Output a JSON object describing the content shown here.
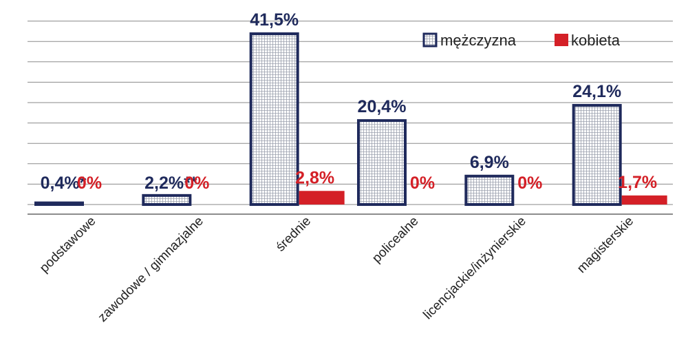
{
  "chart_data": {
    "type": "bar",
    "categories": [
      "podstawowe",
      "zawodowe / gimnazjalne",
      "średnie",
      "policealne",
      "licencjackie/inżynierskie",
      "magisterskie"
    ],
    "series": [
      {
        "name": "mężczyzna",
        "values": [
          0.4,
          2.2,
          41.5,
          20.4,
          6.9,
          24.1
        ],
        "labels": [
          "0,4%*",
          "2,2%**",
          "41,5%",
          "20,4%",
          "6,9%",
          "24,1%"
        ],
        "color": "#1f2a5c"
      },
      {
        "name": "kobieta",
        "values": [
          0,
          0,
          2.8,
          0,
          0,
          1.7
        ],
        "labels": [
          "0%",
          "0%",
          "2,8%",
          "0%",
          "0%",
          "1,7%"
        ],
        "color": "#d42027"
      }
    ],
    "ylim": [
      0,
      45
    ],
    "grid": true,
    "legend": "top-right"
  }
}
